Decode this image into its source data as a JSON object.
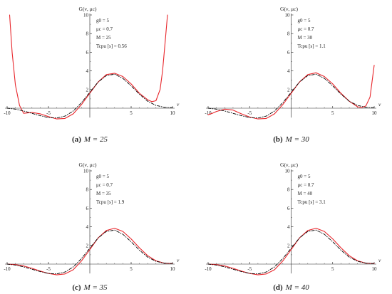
{
  "chart_data": [
    {
      "type": "line",
      "caption": {
        "letter": "(a)",
        "text": "M = 25"
      },
      "ylabel": "G(ν, μc)",
      "xlabel": "ν",
      "xlim": [
        -10,
        10
      ],
      "ylim": [
        -1,
        10
      ],
      "xticks": [
        -10,
        -5,
        5,
        10
      ],
      "yticks": [
        2,
        4,
        6,
        8,
        10
      ],
      "params": [
        "g0 = 5",
        "μc = 0.7",
        "M = 25",
        "Tcpu [s] = 0.56"
      ],
      "series": [
        {
          "name": "",
          "style": "solid",
          "color": "#e8262b",
          "x": [
            -9.7,
            -9.4,
            -9.0,
            -8.5,
            -8.0,
            -7.5,
            -7.0,
            -6.0,
            -5.0,
            -4.0,
            -3.0,
            -2.0,
            -1.0,
            0.0,
            1.0,
            2.0,
            3.0,
            4.0,
            5.0,
            6.0,
            7.0,
            7.5,
            8.0,
            8.5,
            8.8,
            9.1,
            9.4
          ],
          "y": [
            10.0,
            6.0,
            2.5,
            0.3,
            -0.55,
            -0.5,
            -0.45,
            -0.6,
            -0.9,
            -1.15,
            -1.1,
            -0.6,
            0.4,
            1.6,
            2.8,
            3.6,
            3.75,
            3.4,
            2.6,
            1.6,
            0.9,
            0.7,
            0.8,
            2.0,
            4.0,
            7.0,
            10.0
          ]
        },
        {
          "name": "",
          "style": "dashdot",
          "color": "#000000",
          "x": [
            -10,
            -9,
            -8,
            -7,
            -6,
            -5,
            -4,
            -3,
            -2,
            -1,
            0,
            1,
            2,
            3,
            4,
            5,
            6,
            7,
            8,
            9,
            10
          ],
          "y": [
            0.0,
            -0.1,
            -0.3,
            -0.55,
            -0.8,
            -1.0,
            -1.05,
            -0.85,
            -0.3,
            0.6,
            1.7,
            2.8,
            3.5,
            3.65,
            3.2,
            2.4,
            1.5,
            0.75,
            0.3,
            0.1,
            0.05
          ]
        }
      ]
    },
    {
      "type": "line",
      "caption": {
        "letter": "(b)",
        "text": "M = 30"
      },
      "ylabel": "G(ν, μc)",
      "xlabel": "ν",
      "xlim": [
        -10,
        10
      ],
      "ylim": [
        -1,
        10
      ],
      "xticks": [
        -10,
        -5,
        5,
        10
      ],
      "yticks": [
        2,
        4,
        6,
        8,
        10
      ],
      "params": [
        "g0 = 5",
        "μc = 0.7",
        "M = 30",
        "Tcpu [s] = 1.1"
      ],
      "series": [
        {
          "name": "",
          "style": "solid",
          "color": "#e8262b",
          "x": [
            -10.0,
            -9.5,
            -9.0,
            -8.0,
            -7.0,
            -6.0,
            -5.0,
            -4.0,
            -3.0,
            -2.0,
            -1.0,
            0.0,
            1.0,
            2.0,
            3.0,
            4.0,
            5.0,
            6.0,
            7.0,
            8.0,
            8.5,
            9.0,
            9.5,
            10.0
          ],
          "y": [
            -0.7,
            -0.55,
            -0.35,
            -0.1,
            -0.2,
            -0.6,
            -0.95,
            -1.15,
            -1.1,
            -0.6,
            0.4,
            1.6,
            2.8,
            3.6,
            3.8,
            3.4,
            2.6,
            1.6,
            0.75,
            0.15,
            0.05,
            0.25,
            1.2,
            4.6
          ]
        },
        {
          "name": "",
          "style": "dashdot",
          "color": "#000000",
          "x": [
            -10,
            -9,
            -8,
            -7,
            -6,
            -5,
            -4,
            -3,
            -2,
            -1,
            0,
            1,
            2,
            3,
            4,
            5,
            6,
            7,
            8,
            9,
            10
          ],
          "y": [
            0.0,
            -0.1,
            -0.3,
            -0.55,
            -0.8,
            -1.0,
            -1.05,
            -0.85,
            -0.3,
            0.6,
            1.7,
            2.8,
            3.5,
            3.65,
            3.2,
            2.4,
            1.5,
            0.75,
            0.3,
            0.1,
            0.05
          ]
        }
      ]
    },
    {
      "type": "line",
      "caption": {
        "letter": "(c)",
        "text": "M = 35"
      },
      "ylabel": "G(ν, μc)",
      "xlabel": "ν",
      "xlim": [
        -10,
        10
      ],
      "ylim": [
        -1,
        10
      ],
      "xticks": [
        -10,
        -5,
        5,
        10
      ],
      "yticks": [
        2,
        4,
        6,
        8,
        10
      ],
      "params": [
        "g0 = 5",
        "μc = 0.7",
        "M = 35",
        "Tcpu [s] = 1.9"
      ],
      "series": [
        {
          "name": "",
          "style": "solid",
          "color": "#e8262b",
          "x": [
            -10,
            -9,
            -8,
            -7,
            -6,
            -5,
            -4,
            -3,
            -2,
            -1,
            0,
            1,
            2,
            3,
            4,
            5,
            6,
            7,
            8,
            9,
            10
          ],
          "y": [
            0.0,
            -0.05,
            -0.2,
            -0.45,
            -0.75,
            -1.0,
            -1.15,
            -1.05,
            -0.6,
            0.35,
            1.55,
            2.8,
            3.6,
            3.85,
            3.5,
            2.7,
            1.75,
            0.9,
            0.35,
            0.1,
            0.05
          ]
        },
        {
          "name": "",
          "style": "dashdot",
          "color": "#000000",
          "x": [
            -10,
            -9,
            -8,
            -7,
            -6,
            -5,
            -4,
            -3,
            -2,
            -1,
            0,
            1,
            2,
            3,
            4,
            5,
            6,
            7,
            8,
            9,
            10
          ],
          "y": [
            0.0,
            -0.1,
            -0.3,
            -0.55,
            -0.8,
            -1.0,
            -1.05,
            -0.85,
            -0.3,
            0.6,
            1.7,
            2.8,
            3.5,
            3.65,
            3.2,
            2.4,
            1.5,
            0.75,
            0.3,
            0.1,
            0.05
          ]
        }
      ]
    },
    {
      "type": "line",
      "caption": {
        "letter": "(d)",
        "text": "M = 40"
      },
      "ylabel": "G(ν, μc)",
      "xlabel": "ν",
      "xlim": [
        -10,
        10
      ],
      "ylim": [
        -1,
        10
      ],
      "xticks": [
        -10,
        -5,
        5,
        10
      ],
      "yticks": [
        2,
        4,
        6,
        8,
        10
      ],
      "params": [
        "g0 = 5",
        "μc = 0.7",
        "M = 40",
        "Tcpu [s] = 3.1"
      ],
      "series": [
        {
          "name": "",
          "style": "solid",
          "color": "#e8262b",
          "x": [
            -10,
            -9,
            -8,
            -7,
            -6,
            -5,
            -4,
            -3,
            -2,
            -1,
            0,
            1,
            2,
            3,
            4,
            5,
            6,
            7,
            8,
            9,
            10
          ],
          "y": [
            0.0,
            -0.05,
            -0.2,
            -0.45,
            -0.75,
            -1.0,
            -1.15,
            -1.05,
            -0.6,
            0.35,
            1.55,
            2.8,
            3.6,
            3.85,
            3.5,
            2.7,
            1.75,
            0.9,
            0.35,
            0.1,
            0.05
          ]
        },
        {
          "name": "",
          "style": "dashdot",
          "color": "#000000",
          "x": [
            -10,
            -9,
            -8,
            -7,
            -6,
            -5,
            -4,
            -3,
            -2,
            -1,
            0,
            1,
            2,
            3,
            4,
            5,
            6,
            7,
            8,
            9,
            10
          ],
          "y": [
            0.0,
            -0.1,
            -0.3,
            -0.55,
            -0.8,
            -1.0,
            -1.05,
            -0.85,
            -0.3,
            0.6,
            1.7,
            2.8,
            3.5,
            3.65,
            3.2,
            2.4,
            1.5,
            0.75,
            0.3,
            0.1,
            0.05
          ]
        }
      ]
    }
  ]
}
